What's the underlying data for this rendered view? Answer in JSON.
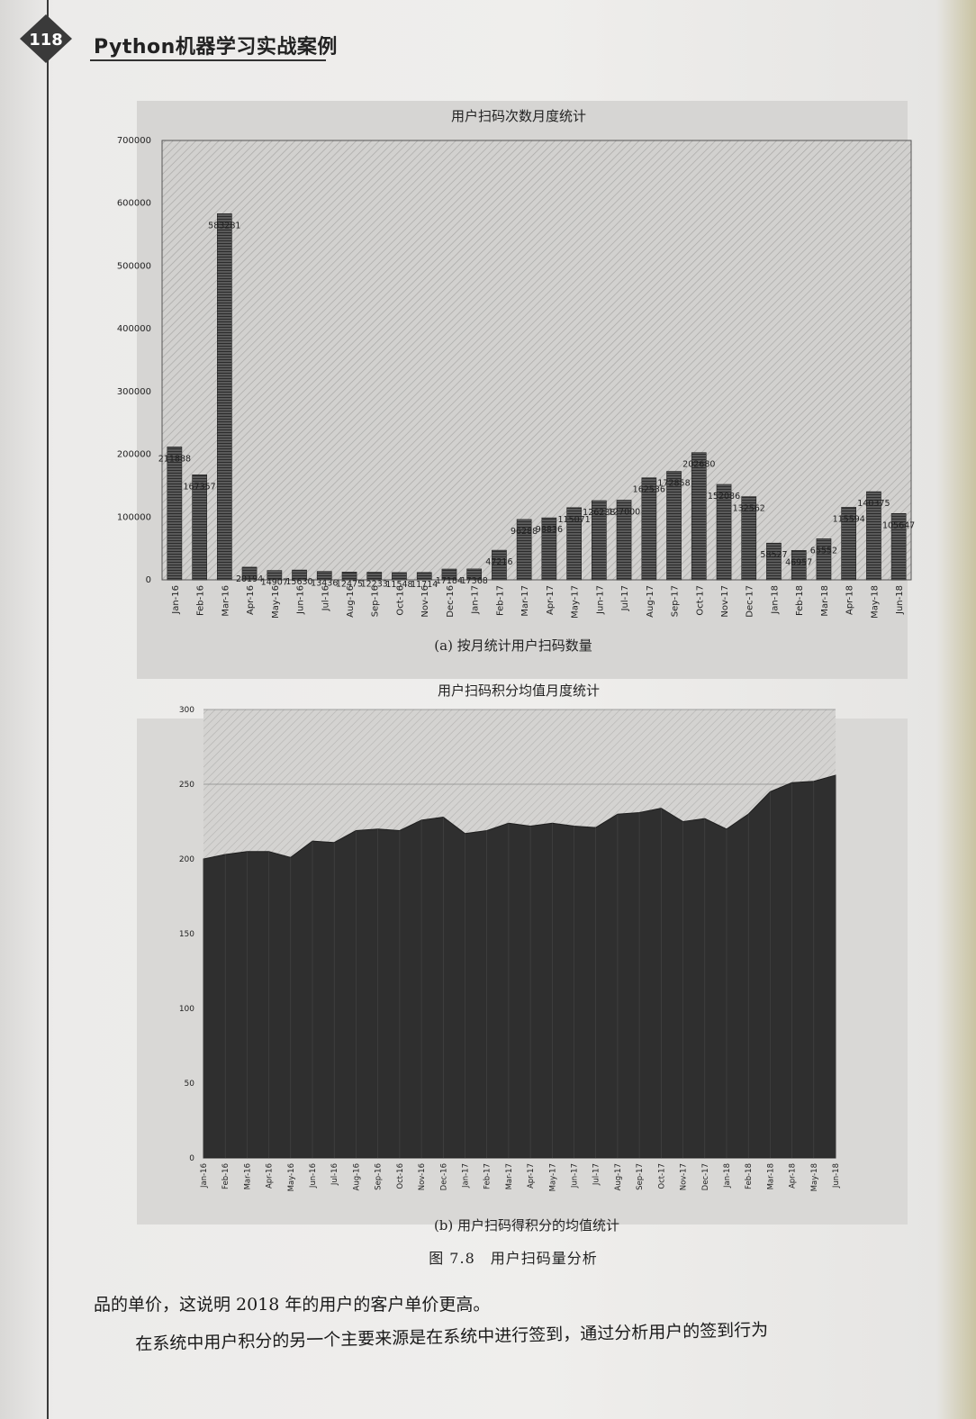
{
  "header": {
    "page_number": "118",
    "book_title": "Python机器学习实战案例"
  },
  "figure": {
    "caption": "图 7.8　用户扫码量分析"
  },
  "text": {
    "p1": "品的单价，这说明 2018 年的用户的客户单价更高。",
    "p2": "在系统中用户积分的另一个主要来源是在系统中进行签到，通过分析用户的签到行为"
  },
  "chart_data": [
    {
      "type": "bar",
      "title": "用户扫码次数月度统计",
      "subcaption": "(a) 按月统计用户扫码数量",
      "categories": [
        "Jan-16",
        "Feb-16",
        "Mar-16",
        "Apr-16",
        "May-16",
        "Jun-16",
        "Jul-16",
        "Aug-16",
        "Sep-16",
        "Oct-16",
        "Nov-16",
        "Dec-16",
        "Jan-17",
        "Feb-17",
        "Mar-17",
        "Apr-17",
        "May-17",
        "Jun-17",
        "Jul-17",
        "Aug-17",
        "Sep-17",
        "Oct-17",
        "Nov-17",
        "Dec-17",
        "Jan-18",
        "Feb-18",
        "Mar-18",
        "Apr-18",
        "May-18",
        "Jun-18"
      ],
      "values": [
        211888,
        167357,
        583281,
        20194,
        14907,
        15630,
        13436,
        12475,
        12233,
        11548,
        11714,
        17184,
        17368,
        47216,
        96288,
        98836,
        115071,
        126238,
        127000,
        162536,
        172858,
        202680,
        152086,
        132562,
        58527,
        46957,
        65552,
        115594,
        140375,
        105647
      ],
      "labels": [
        "211888",
        "167357",
        "583281",
        "20194",
        "14907",
        "15630",
        "13436",
        "12475",
        "12233",
        "11548",
        "11714",
        "17184",
        "17368",
        "47216",
        "96288",
        "98836",
        "115071",
        "126238",
        "127000",
        "162536",
        "172858",
        "202680",
        "152086",
        "132562",
        "58527",
        "46957",
        "65552",
        "115594",
        "140375",
        "105647"
      ],
      "ylim": [
        0,
        700000
      ],
      "yticks": [
        "0",
        "100000",
        "200000",
        "300000",
        "400000",
        "500000",
        "600000",
        "700000"
      ]
    },
    {
      "type": "area",
      "title": "用户扫码积分均值月度统计",
      "subcaption": "(b) 用户扫码得积分的均值统计",
      "categories": [
        "Jan-16",
        "Feb-16",
        "Mar-16",
        "Apr-16",
        "May-16",
        "Jun-16",
        "Jul-16",
        "Aug-16",
        "Sep-16",
        "Oct-16",
        "Nov-16",
        "Dec-16",
        "Jan-17",
        "Feb-17",
        "Mar-17",
        "Apr-17",
        "May-17",
        "Jun-17",
        "Jul-17",
        "Aug-17",
        "Sep-17",
        "Oct-17",
        "Nov-17",
        "Dec-17",
        "Jan-18",
        "Feb-18",
        "Mar-18",
        "Apr-18",
        "May-18",
        "Jun-18"
      ],
      "values": [
        200,
        203,
        205,
        205,
        201,
        212,
        211,
        219,
        220,
        219,
        226,
        228,
        217,
        219,
        224,
        222,
        224,
        222,
        221,
        230,
        231,
        234,
        225,
        227,
        220,
        230,
        245,
        251,
        252,
        256
      ],
      "ylim": [
        0,
        300
      ],
      "yticks": [
        "0",
        "50",
        "100",
        "150",
        "200",
        "250",
        "300"
      ]
    }
  ]
}
